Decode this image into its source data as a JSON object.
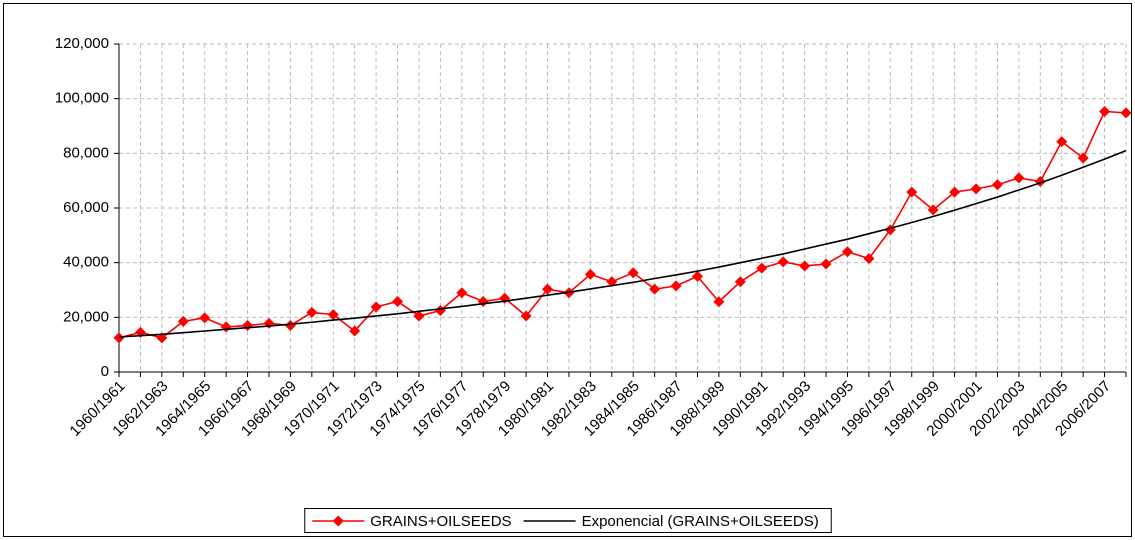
{
  "chart_data": {
    "type": "line",
    "categories": [
      "1960/1961",
      null,
      "1962/1963",
      null,
      "1964/1965",
      null,
      "1966/1967",
      null,
      "1968/1969",
      null,
      "1970/1971",
      null,
      "1972/1973",
      null,
      "1974/1975",
      null,
      "1976/1977",
      null,
      "1978/1979",
      null,
      "1980/1981",
      null,
      "1982/1983",
      null,
      "1984/1985",
      null,
      "1986/1987",
      null,
      "1988/1989",
      null,
      "1990/1991",
      null,
      "1992/1993",
      null,
      "1994/1995",
      null,
      "1996/1997",
      null,
      "1998/1999",
      null,
      "2000/2001",
      null,
      "2002/2003",
      null,
      "2004/2005",
      null,
      "2006/2007",
      null
    ],
    "series": [
      {
        "name": "GRAINS+OILSEEDS",
        "color": "#ff0000",
        "marker": "diamond",
        "values": [
          12500,
          14500,
          12500,
          18500,
          19800,
          16500,
          17000,
          17800,
          17000,
          21800,
          21000,
          15000,
          23800,
          25800,
          20500,
          22500,
          29000,
          25800,
          27000,
          20500,
          30300,
          29000,
          35700,
          33000,
          36300,
          30300,
          31500,
          35000,
          25700,
          33000,
          38000,
          40300,
          38800,
          39500,
          44000,
          41500,
          52000,
          65800,
          59300,
          65800,
          67000,
          68500,
          71000,
          69700,
          84300,
          78300,
          95300,
          94800
        ]
      },
      {
        "name": "Exponencial (GRAINS+OILSEEDS)",
        "color": "#000000",
        "marker": null,
        "values": [
          12800,
          13300,
          13800,
          14400,
          15000,
          15600,
          16200,
          16800,
          17500,
          18200,
          19000,
          19700,
          20500,
          21300,
          22200,
          23100,
          24000,
          25000,
          25900,
          27000,
          28100,
          29200,
          30400,
          31600,
          32800,
          34200,
          35500,
          36900,
          38400,
          40000,
          41600,
          43200,
          45000,
          46800,
          48600,
          50600,
          52600,
          54700,
          56900,
          59200,
          61600,
          64000,
          66600,
          69200,
          72000,
          74900,
          77900,
          81000
        ]
      }
    ],
    "ylim": [
      0,
      120000
    ],
    "yticks": [
      0,
      {
        "value": 20000,
        "label": "20,000"
      },
      {
        "value": 40000,
        "label": "40,000"
      },
      {
        "value": 60000,
        "label": "60,000"
      },
      {
        "value": 80000,
        "label": "80,000"
      },
      {
        "value": 100000,
        "label": "100,000"
      },
      {
        "value": 120000,
        "label": "120,000"
      }
    ],
    "grid": true,
    "legend": "bottom"
  }
}
